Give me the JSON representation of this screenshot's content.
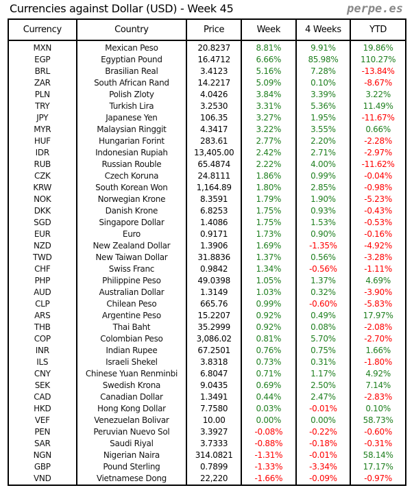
{
  "title": "Currencies against Dollar (USD) - Week 45",
  "brand": "perpe.es",
  "colors": {
    "positive": "#1f7f1f",
    "negative": "#ff0000"
  },
  "columns": [
    "Currency",
    "Country",
    "Price",
    "Week",
    "4 Weeks",
    "YTD"
  ],
  "rows": [
    [
      "MXN",
      "Mexican Peso",
      "20.8237",
      "8.81%",
      "9.91%",
      "19.86%"
    ],
    [
      "EGP",
      "Egyptian Pound",
      "16.4712",
      "6.66%",
      "85.98%",
      "110.27%"
    ],
    [
      "BRL",
      "Brasilian Real",
      "3.4123",
      "5.16%",
      "7.28%",
      "-13.84%"
    ],
    [
      "ZAR",
      "South African Rand",
      "14.2217",
      "5.09%",
      "0.10%",
      "-8.67%"
    ],
    [
      "PLN",
      "Polish Zloty",
      "4.0426",
      "3.84%",
      "3.39%",
      "3.22%"
    ],
    [
      "TRY",
      "Turkish Lira",
      "3.2530",
      "3.31%",
      "5.36%",
      "11.49%"
    ],
    [
      "JPY",
      "Japanese Yen",
      "106.35",
      "3.27%",
      "1.95%",
      "-11.67%"
    ],
    [
      "MYR",
      "Malaysian Ringgit",
      "4.3417",
      "3.22%",
      "3.55%",
      "0.66%"
    ],
    [
      "HUF",
      "Hungarian Forint",
      "283.61",
      "2.77%",
      "2.20%",
      "-2.28%"
    ],
    [
      "IDR",
      "Indonesian Rupiah",
      "13,405.00",
      "2.42%",
      "2.71%",
      "-2.97%"
    ],
    [
      "RUB",
      "Russian Rouble",
      "65.4874",
      "2.22%",
      "4.00%",
      "-11.62%"
    ],
    [
      "CZK",
      "Czech Koruna",
      "24.8111",
      "1.86%",
      "0.99%",
      "-0.04%"
    ],
    [
      "KRW",
      "South Korean Won",
      "1,164.89",
      "1.80%",
      "2.85%",
      "-0.98%"
    ],
    [
      "NOK",
      "Norwegian Krone",
      "8.3591",
      "1.79%",
      "1.90%",
      "-5.23%"
    ],
    [
      "DKK",
      "Danish Krone",
      "6.8253",
      "1.75%",
      "0.93%",
      "-0.43%"
    ],
    [
      "SGD",
      "Singapore Dollar",
      "1.4086",
      "1.75%",
      "1.53%",
      "-0.53%"
    ],
    [
      "EUR",
      "Euro",
      "0.9171",
      "1.73%",
      "0.90%",
      "-0.16%"
    ],
    [
      "NZD",
      "New Zealand Dollar",
      "1.3906",
      "1.69%",
      "-1.35%",
      "-4.92%"
    ],
    [
      "TWD",
      "New Taiwan Dollar",
      "31.8836",
      "1.37%",
      "0.56%",
      "-3.28%"
    ],
    [
      "CHF",
      "Swiss Franc",
      "0.9842",
      "1.34%",
      "-0.56%",
      "-1.11%"
    ],
    [
      "PHP",
      "Philippine Peso",
      "49.0398",
      "1.05%",
      "1.37%",
      "4.69%"
    ],
    [
      "AUD",
      "Australian Dollar",
      "1.3149",
      "1.03%",
      "0.32%",
      "-3.90%"
    ],
    [
      "CLP",
      "Chilean Peso",
      "665.76",
      "0.99%",
      "-0.60%",
      "-5.83%"
    ],
    [
      "ARS",
      "Argentine Peso",
      "15.2207",
      "0.92%",
      "0.49%",
      "17.97%"
    ],
    [
      "THB",
      "Thai Baht",
      "35.2999",
      "0.92%",
      "0.08%",
      "-2.08%"
    ],
    [
      "COP",
      "Colombian Peso",
      "3,086.02",
      "0.81%",
      "5.70%",
      "-2.70%"
    ],
    [
      "INR",
      "Indian Rupee",
      "67.2501",
      "0.76%",
      "0.75%",
      "1.66%"
    ],
    [
      "ILS",
      "Israeli Shekel",
      "3.8318",
      "0.73%",
      "0.31%",
      "-1.80%"
    ],
    [
      "CNY",
      "Chinese Yuan Renminbi",
      "6.8047",
      "0.71%",
      "1.17%",
      "4.92%"
    ],
    [
      "SEK",
      "Swedish Krona",
      "9.0435",
      "0.69%",
      "2.50%",
      "7.14%"
    ],
    [
      "CAD",
      "Canadian Dollar",
      "1.3491",
      "0.44%",
      "2.47%",
      "-2.83%"
    ],
    [
      "HKD",
      "Hong Kong Dollar",
      "7.7580",
      "0.03%",
      "-0.01%",
      "0.10%"
    ],
    [
      "VEF",
      "Venezuelan Bolivar",
      "10.00",
      "0.00%",
      "0.00%",
      "58.73%"
    ],
    [
      "PEN",
      "Peruvian Nuevo Sol",
      "3.3927",
      "-0.08%",
      "-0.22%",
      "-0.60%"
    ],
    [
      "SAR",
      "Saudi Riyal",
      "3.7333",
      "-0.88%",
      "-0.18%",
      "-0.31%"
    ],
    [
      "NGN",
      "Nigerian Naira",
      "314.0821",
      "-1.31%",
      "-0.01%",
      "58.14%"
    ],
    [
      "GBP",
      "Pound Sterling",
      "0.7899",
      "-1.33%",
      "-3.34%",
      "17.17%"
    ],
    [
      "VND",
      "Vietnamese Dong",
      "22,220",
      "-1.66%",
      "-0.09%",
      "-0.97%"
    ]
  ]
}
